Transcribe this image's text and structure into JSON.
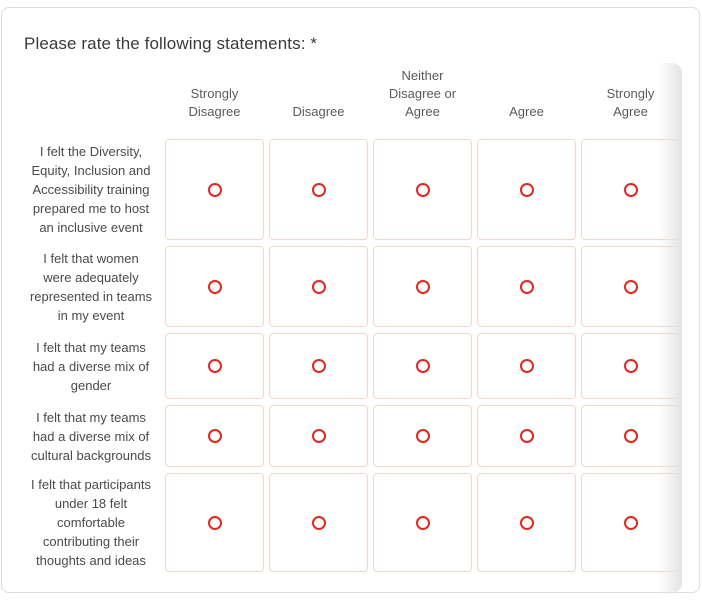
{
  "question": {
    "title": "Please rate the following statements: *"
  },
  "matrix": {
    "columns": [
      "Strongly\nDisagree",
      "Disagree",
      "Neither\nDisagree or\nAgree",
      "Agree",
      "Strongly\nAgree"
    ],
    "rows": [
      {
        "label": "I felt the Diversity,\nEquity, Inclusion and\nAccessibility  training\nprepared me to host\nan inclusive event",
        "selected": null
      },
      {
        "label": "I felt that women\nwere adequately\nrepresented in teams\nin my event",
        "selected": null
      },
      {
        "label": "I felt that my teams\nhad a diverse mix of\ngender",
        "selected": null
      },
      {
        "label": "I felt that my teams\nhad a diverse mix of\ncultural backgrounds",
        "selected": null
      },
      {
        "label": "I felt that participants\nunder 18 felt\ncomfortable\ncontributing their\nthoughts and ideas",
        "selected": null
      }
    ]
  },
  "colors": {
    "radio_accent": "#e1281e",
    "cell_border": "#f3d6c7",
    "card_border": "#dcdcdc",
    "header_text": "#5a5a5a",
    "label_text": "#4a4a4a",
    "title_text": "#3a3a3a",
    "scroll_fade": "#e4e4e4"
  }
}
